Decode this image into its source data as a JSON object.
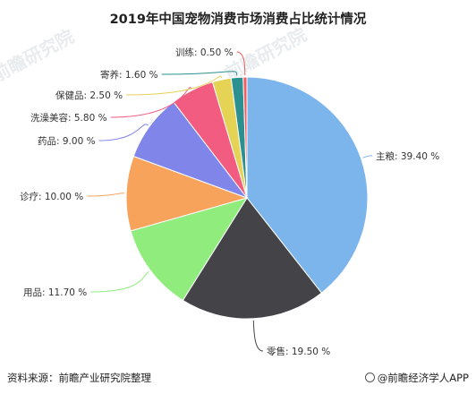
{
  "chart_data": {
    "type": "pie",
    "title": "2019年中国宠物消费市场消费占比统计情况",
    "slices": [
      {
        "name": "主粮",
        "value": 39.4,
        "label": "主粮: 39.40 %",
        "color": "#7cb5ec"
      },
      {
        "name": "零售",
        "value": 19.5,
        "label": "零售: 19.50 %",
        "color": "#434348"
      },
      {
        "name": "用品",
        "value": 11.7,
        "label": "用品: 11.70 %",
        "color": "#90ed7d"
      },
      {
        "name": "诊疗",
        "value": 10.0,
        "label": "诊疗: 10.00 %",
        "color": "#f7a35c"
      },
      {
        "name": "药品",
        "value": 9.0,
        "label": "药品: 9.00 %",
        "color": "#8085e9"
      },
      {
        "name": "洗澡美容",
        "value": 5.8,
        "label": "洗澡美容: 5.80 %",
        "color": "#f15c80"
      },
      {
        "name": "保健品",
        "value": 2.5,
        "label": "保健品: 2.50 %",
        "color": "#e4d354"
      },
      {
        "name": "寄养",
        "value": 1.6,
        "label": "寄养: 1.60 %",
        "color": "#2b908f"
      },
      {
        "name": "训练",
        "value": 0.5,
        "label": "训练: 0.50 %",
        "color": "#f45b5b"
      }
    ]
  },
  "footer": {
    "source": "资料来源：前瞻产业研究院整理",
    "brand": "@前瞻经济学人APP"
  },
  "watermark": "前瞻研究院"
}
